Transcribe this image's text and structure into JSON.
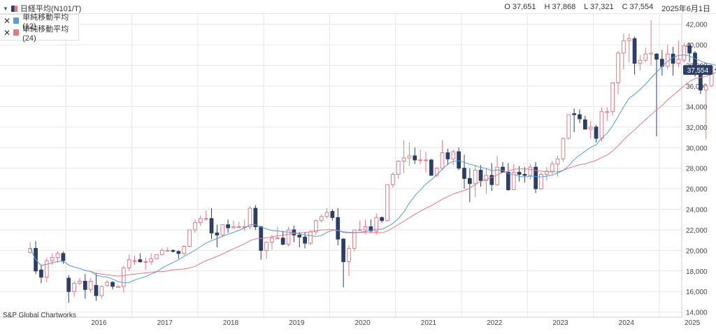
{
  "header": {
    "symbol": "日経平均(N101/T)",
    "open": "O 37,651",
    "high": "H 37,868",
    "low": "L 37,321",
    "close": "C 37,554",
    "date": "2025年6月1日"
  },
  "legend": {
    "items": [
      {
        "label": "単純移動平均 (12)",
        "color": "#5b9bd5"
      },
      {
        "label": "単純移動平均 (24)",
        "color": "#e07b86"
      }
    ]
  },
  "credit": "S&P Global Chartworks",
  "colors": {
    "up": "#e07b86",
    "down": "#2c3e63",
    "ma12": "#5b9bd5",
    "ma24": "#e07b86",
    "last_price_bg": "#2c3e63"
  },
  "chart_data": {
    "type": "candlestick",
    "x_axis": [
      "2016",
      "2017",
      "2018",
      "2019",
      "2020",
      "2021",
      "2022",
      "2023",
      "2024",
      "2025"
    ],
    "y_axis": [
      "14,000",
      "16,000",
      "18,000",
      "20,000",
      "22,000",
      "24,000",
      "26,000",
      "28,000",
      "30,000",
      "32,000",
      "34,000",
      "36,000",
      "38,000",
      "40,000",
      "42,000"
    ],
    "ylim": [
      13500,
      43000
    ],
    "last_price_label": "37,554",
    "last_price": 37554,
    "start": "2015-06",
    "ohlc": [
      [
        19800,
        20800,
        19700,
        20200
      ],
      [
        20200,
        20900,
        17700,
        18000
      ],
      [
        18100,
        18600,
        16800,
        17400
      ],
      [
        17400,
        19300,
        16900,
        19000
      ],
      [
        19000,
        19700,
        18600,
        19300
      ],
      [
        19300,
        19900,
        18800,
        19700
      ],
      [
        19700,
        19900,
        18700,
        19000
      ],
      [
        17300,
        17600,
        14900,
        16000
      ],
      [
        16000,
        17000,
        15500,
        16800
      ],
      [
        16800,
        17300,
        16600,
        17000
      ],
      [
        17000,
        17700,
        15300,
        16200
      ],
      [
        16200,
        17300,
        15900,
        17000
      ],
      [
        16600,
        17800,
        15100,
        15600
      ],
      [
        15600,
        16600,
        15300,
        16500
      ],
      [
        16600,
        17100,
        16500,
        16900
      ],
      [
        16900,
        17000,
        16200,
        16500
      ],
      [
        16400,
        16600,
        16400,
        16500
      ],
      [
        16500,
        18500,
        15900,
        18300
      ],
      [
        18300,
        19600,
        18000,
        19100
      ],
      [
        19000,
        19500,
        18600,
        19000
      ],
      [
        19100,
        19700,
        18800,
        18900
      ],
      [
        18900,
        19300,
        18100,
        18900
      ],
      [
        18900,
        19700,
        18600,
        19200
      ],
      [
        19200,
        19600,
        19100,
        19600
      ],
      [
        19600,
        20200,
        19500,
        20000
      ],
      [
        20000,
        20300,
        19900,
        20000
      ],
      [
        20000,
        20100,
        19800,
        19900
      ],
      [
        19900,
        20000,
        19200,
        19700
      ],
      [
        19700,
        20500,
        19500,
        20400
      ],
      [
        20400,
        22000,
        20300,
        22000
      ],
      [
        22000,
        23000,
        21700,
        22700
      ],
      [
        22700,
        23400,
        22400,
        23100
      ],
      [
        23100,
        23900,
        22900,
        23100
      ],
      [
        23100,
        24100,
        21100,
        21700
      ],
      [
        21700,
        22500,
        20300,
        21500
      ],
      [
        21500,
        22500,
        21300,
        22500
      ],
      [
        22500,
        23000,
        21700,
        22200
      ],
      [
        22200,
        22900,
        22100,
        22300
      ],
      [
        22300,
        22800,
        22200,
        22300
      ],
      [
        22300,
        23000,
        21900,
        22300
      ],
      [
        22300,
        24300,
        22100,
        24100
      ],
      [
        24100,
        24400,
        22000,
        22300
      ],
      [
        22300,
        22400,
        19100,
        20000
      ],
      [
        20000,
        20800,
        19200,
        20800
      ],
      [
        20800,
        21500,
        20100,
        21200
      ],
      [
        21200,
        22300,
        21100,
        21200
      ],
      [
        21200,
        21900,
        20500,
        20600
      ],
      [
        20600,
        22300,
        20400,
        22000
      ],
      [
        22000,
        22400,
        20800,
        21500
      ],
      [
        21500,
        21800,
        20300,
        21300
      ],
      [
        21300,
        21800,
        20200,
        20700
      ],
      [
        20700,
        22000,
        20500,
        21800
      ],
      [
        21800,
        23000,
        21500,
        22900
      ],
      [
        22900,
        23500,
        22700,
        23300
      ],
      [
        23300,
        24100,
        23100,
        23700
      ],
      [
        23800,
        24000,
        22900,
        23200
      ],
      [
        23200,
        24100,
        20500,
        21100
      ],
      [
        21100,
        21200,
        16400,
        18900
      ],
      [
        18900,
        20500,
        17500,
        20200
      ],
      [
        20200,
        22000,
        19900,
        22000
      ],
      [
        22000,
        22900,
        21900,
        22000
      ],
      [
        22000,
        23000,
        21600,
        22300
      ],
      [
        22300,
        23000,
        21700,
        21900
      ],
      [
        21900,
        23600,
        21500,
        23200
      ],
      [
        23200,
        23300,
        22700,
        22900
      ],
      [
        22900,
        26400,
        22800,
        26400
      ],
      [
        26400,
        27600,
        26100,
        27400
      ],
      [
        27400,
        28700,
        27000,
        28700
      ],
      [
        28700,
        30700,
        27500,
        29000
      ],
      [
        29000,
        30500,
        28200,
        29200
      ],
      [
        29200,
        30000,
        28400,
        28800
      ],
      [
        28800,
        29800,
        28400,
        28800
      ],
      [
        28800,
        29600,
        27600,
        28800
      ],
      [
        28800,
        28900,
        27500,
        27300
      ],
      [
        27300,
        28100,
        27100,
        28000
      ],
      [
        28000,
        30700,
        27800,
        29500
      ],
      [
        29500,
        29900,
        28300,
        28900
      ],
      [
        28900,
        29800,
        28300,
        29600
      ],
      [
        29600,
        30000,
        27800,
        28000
      ],
      [
        28000,
        29300,
        26000,
        27000
      ],
      [
        27000,
        28000,
        24700,
        26500
      ],
      [
        26500,
        28300,
        25200,
        27800
      ],
      [
        27800,
        28300,
        26200,
        26800
      ],
      [
        26800,
        28000,
        25500,
        27300
      ],
      [
        27300,
        28500,
        25800,
        26400
      ],
      [
        26400,
        29200,
        26300,
        28100
      ],
      [
        28100,
        28600,
        27600,
        27600
      ],
      [
        27600,
        28500,
        25800,
        25900
      ],
      [
        25900,
        28400,
        25900,
        27600
      ],
      [
        27600,
        28200,
        26700,
        27400
      ],
      [
        27400,
        28100,
        26600,
        27300
      ],
      [
        27300,
        28400,
        26900,
        28100
      ],
      [
        28100,
        28600,
        25600,
        26000
      ],
      [
        26000,
        27600,
        25900,
        27400
      ],
      [
        27400,
        28100,
        26800,
        27700
      ],
      [
        27700,
        28700,
        27400,
        28400
      ],
      [
        28400,
        29200,
        27200,
        28900
      ],
      [
        28900,
        31000,
        28600,
        30900
      ],
      [
        30900,
        33200,
        30800,
        33200
      ],
      [
        33300,
        33800,
        31500,
        33200
      ],
      [
        33200,
        33700,
        32400,
        32800
      ],
      [
        32700,
        33100,
        31800,
        31800
      ],
      [
        31800,
        32600,
        30900,
        32000
      ],
      [
        32000,
        32200,
        30500,
        30900
      ],
      [
        30900,
        33900,
        30600,
        33500
      ],
      [
        33500,
        33900,
        32600,
        33500
      ],
      [
        33500,
        36300,
        33100,
        36300
      ],
      [
        36300,
        39400,
        35200,
        39200
      ],
      [
        39200,
        41100,
        37600,
        40400
      ],
      [
        40400,
        41100,
        38300,
        40600
      ],
      [
        40600,
        40800,
        37100,
        38200
      ],
      [
        38200,
        39000,
        37500,
        38500
      ],
      [
        38500,
        39700,
        38300,
        39100
      ],
      [
        39100,
        42400,
        38000,
        39200
      ],
      [
        39100,
        39200,
        31100,
        38600
      ],
      [
        38600,
        39500,
        37000,
        37900
      ],
      [
        37900,
        40000,
        37600,
        39100
      ],
      [
        39100,
        39800,
        37000,
        38200
      ],
      [
        38200,
        40400,
        37800,
        38600
      ],
      [
        38500,
        40200,
        38300,
        39900
      ],
      [
        39900,
        40200,
        38300,
        39200
      ],
      [
        39200,
        39400,
        36900,
        37200
      ],
      [
        37100,
        38100,
        35200,
        35600
      ],
      [
        35600,
        36100,
        30800,
        36000
      ],
      [
        36000,
        38100,
        35900,
        37900
      ],
      [
        37651,
        37868,
        37321,
        37554
      ]
    ]
  }
}
